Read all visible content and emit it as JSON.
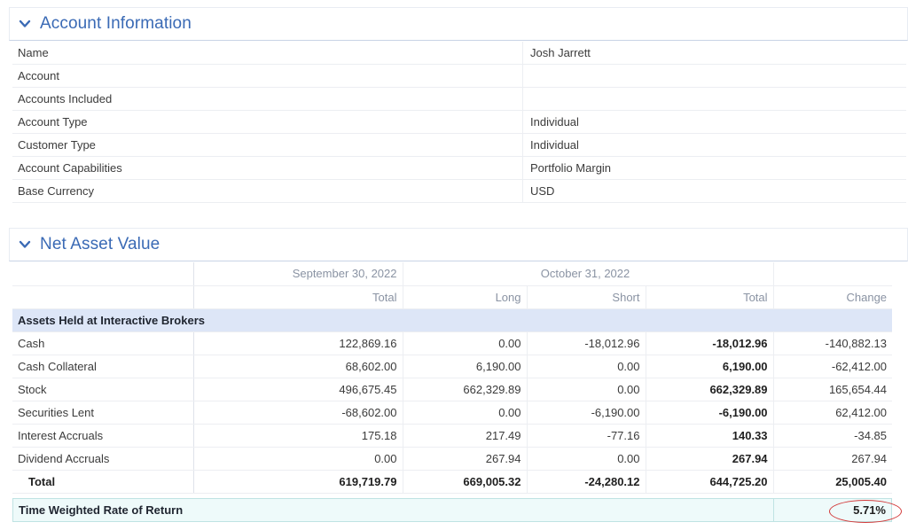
{
  "account_section": {
    "title": "Account Information",
    "rows": [
      {
        "label": "Name",
        "value": "Josh Jarrett"
      },
      {
        "label": "Account",
        "value": ""
      },
      {
        "label": "Accounts Included",
        "value": ""
      },
      {
        "label": "Account Type",
        "value": "Individual"
      },
      {
        "label": "Customer Type",
        "value": "Individual"
      },
      {
        "label": "Account Capabilities",
        "value": "Portfolio Margin"
      },
      {
        "label": "Base Currency",
        "value": "USD"
      }
    ]
  },
  "nav_section": {
    "title": "Net Asset Value",
    "date_prior": "September 30, 2022",
    "date_current": "October 31, 2022",
    "columns": [
      "Total",
      "Long",
      "Short",
      "Total",
      "Change"
    ],
    "group_label": "Assets Held at Interactive Brokers",
    "rows": [
      {
        "label": "Cash",
        "values": [
          "122,869.16",
          "0.00",
          "-18,012.96",
          "-18,012.96",
          "-140,882.13"
        ]
      },
      {
        "label": "Cash Collateral",
        "values": [
          "68,602.00",
          "6,190.00",
          "0.00",
          "6,190.00",
          "-62,412.00"
        ]
      },
      {
        "label": "Stock",
        "values": [
          "496,675.45",
          "662,329.89",
          "0.00",
          "662,329.89",
          "165,654.44"
        ]
      },
      {
        "label": "Securities Lent",
        "values": [
          "-68,602.00",
          "0.00",
          "-6,190.00",
          "-6,190.00",
          "62,412.00"
        ]
      },
      {
        "label": "Interest Accruals",
        "values": [
          "175.18",
          "217.49",
          "-77.16",
          "140.33",
          "-34.85"
        ]
      },
      {
        "label": "Dividend Accruals",
        "values": [
          "0.00",
          "267.94",
          "0.00",
          "267.94",
          "267.94"
        ]
      }
    ],
    "total": {
      "label": "Total",
      "values": [
        "619,719.79",
        "669,005.32",
        "-24,280.12",
        "644,725.20",
        "25,005.40"
      ]
    },
    "twrr": {
      "label": "Time Weighted Rate of Return",
      "value": "5.71%"
    }
  },
  "icons": {
    "section_toggle": "chevron-down-icon"
  },
  "colors": {
    "header_text": "#3a6ab5",
    "group_bg": "#dde6f7",
    "twrr_bg": "#eefafa",
    "annotation_circle": "#d23a3a"
  }
}
